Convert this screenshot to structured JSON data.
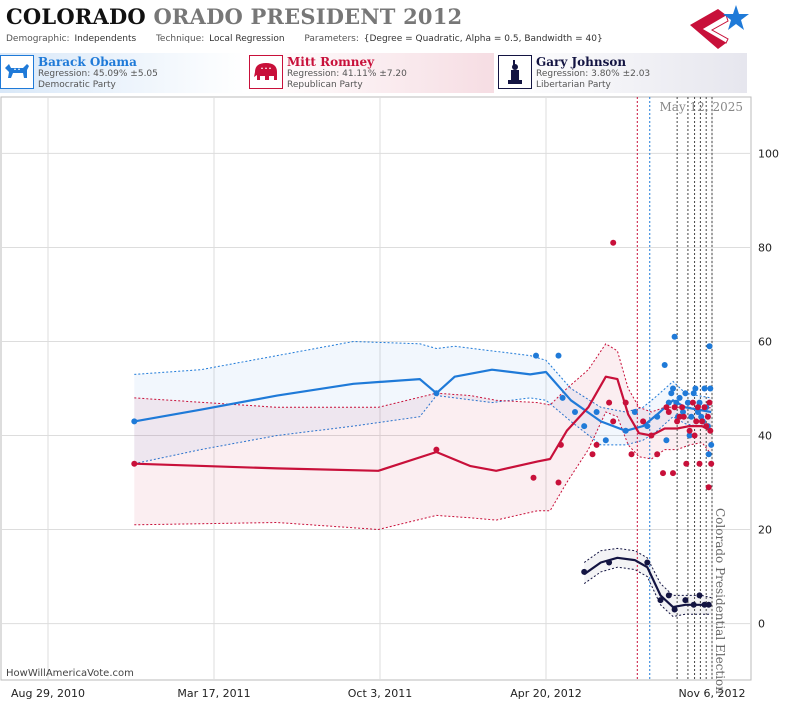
{
  "header": {
    "title_part1": "COLORADO",
    "title_part2": "ORADO PRESIDENT 2012",
    "demographic_label": "Demographic:",
    "demographic_value": "Independents",
    "technique_label": "Technique:",
    "technique_value": "Local Regression",
    "parameters_label": "Parameters:",
    "parameters_value": "{Degree = Quadratic, Alpha = 0.5, Bandwidth = 40}"
  },
  "candidates": [
    {
      "name": "Barack Obama",
      "regression": "Regression: 45.09% ±5.05",
      "party": "Democratic Party",
      "color": "#1f7ad8",
      "icon": "donkey-icon"
    },
    {
      "name": "Mitt Romney",
      "regression": "Regression: 41.11% ±7.20",
      "party": "Republican Party",
      "color": "#c8103a",
      "icon": "elephant-icon"
    },
    {
      "name": "Gary Johnson",
      "regression": "Regression: 3.80% ±2.03",
      "party": "Libertarian Party",
      "color": "#131442",
      "icon": "liberty-icon"
    }
  ],
  "source": "HowWillAmericaVote.com",
  "chart_data": {
    "type": "line",
    "date_label": "May 12, 2025",
    "event_label": "Colorado Presidential Election",
    "x_ticks": [
      "Aug 29, 2010",
      "Mar 17, 2011",
      "Oct 3, 2011",
      "Apr 20, 2012",
      "Nov 6, 2012"
    ],
    "y_ticks": [
      0,
      20,
      40,
      60,
      80,
      100
    ],
    "ylim": [
      -12,
      112
    ],
    "grid": true,
    "series": [
      {
        "name": "Barack Obama",
        "color": "#1f7ad8",
        "x_dates": [
          "2010-12-11",
          "2011-03-01",
          "2011-06-01",
          "2011-09-01",
          "2011-11-20",
          "2011-12-10",
          "2012-01-01",
          "2012-02-15",
          "2012-04-01",
          "2012-04-20",
          "2012-05-20",
          "2012-06-25",
          "2012-07-25",
          "2012-08-15",
          "2012-09-01",
          "2012-09-20",
          "2012-10-05",
          "2012-10-20",
          "2012-11-05"
        ],
        "y": [
          43,
          45.5,
          48.5,
          51,
          52,
          49,
          52.5,
          54,
          53,
          53.5,
          47.5,
          43,
          41,
          42,
          44.5,
          47.5,
          46,
          45.5,
          45
        ],
        "upper": [
          53,
          54,
          57,
          60,
          59.5,
          58.5,
          59,
          58,
          57,
          56,
          50,
          46,
          45,
          46,
          48.5,
          51.5,
          49,
          48.5,
          48
        ],
        "lower": [
          34,
          37,
          40,
          42,
          44,
          48.5,
          48,
          47,
          48,
          47.5,
          43,
          38,
          38,
          39,
          41,
          44,
          42.5,
          42,
          41.5
        ],
        "points": [
          [
            "2010-12-11",
            43
          ],
          [
            "2011-12-10",
            49
          ],
          [
            "2012-04-08",
            57
          ],
          [
            "2012-05-05",
            57
          ],
          [
            "2012-05-10",
            48
          ],
          [
            "2012-05-25",
            45
          ],
          [
            "2012-06-05",
            42
          ],
          [
            "2012-06-20",
            45
          ],
          [
            "2012-07-01",
            39
          ],
          [
            "2012-07-25",
            41
          ],
          [
            "2012-08-05",
            45
          ],
          [
            "2012-08-20",
            42
          ],
          [
            "2012-09-01",
            44
          ],
          [
            "2012-09-10",
            55
          ],
          [
            "2012-09-12",
            39
          ],
          [
            "2012-09-15",
            47
          ],
          [
            "2012-09-18",
            49
          ],
          [
            "2012-09-20",
            50
          ],
          [
            "2012-09-22",
            61
          ],
          [
            "2012-09-24",
            47
          ],
          [
            "2012-09-26",
            44
          ],
          [
            "2012-09-28",
            48
          ],
          [
            "2012-10-02",
            45
          ],
          [
            "2012-10-05",
            49
          ],
          [
            "2012-10-08",
            47
          ],
          [
            "2012-10-10",
            40
          ],
          [
            "2012-10-12",
            44
          ],
          [
            "2012-10-15",
            49
          ],
          [
            "2012-10-17",
            50
          ],
          [
            "2012-10-20",
            45
          ],
          [
            "2012-10-22",
            47
          ],
          [
            "2012-10-24",
            44
          ],
          [
            "2012-10-26",
            43
          ],
          [
            "2012-10-28",
            50
          ],
          [
            "2012-10-30",
            46
          ],
          [
            "2012-11-01",
            42
          ],
          [
            "2012-11-02",
            36
          ],
          [
            "2012-11-03",
            59
          ],
          [
            "2012-11-04",
            50
          ],
          [
            "2012-11-05",
            38
          ]
        ]
      },
      {
        "name": "Mitt Romney",
        "color": "#c8103a",
        "x_dates": [
          "2010-12-11",
          "2011-06-01",
          "2011-10-01",
          "2011-12-10",
          "2012-01-20",
          "2012-02-20",
          "2012-04-10",
          "2012-04-25",
          "2012-05-15",
          "2012-06-10",
          "2012-07-01",
          "2012-07-15",
          "2012-07-28",
          "2012-08-10",
          "2012-08-25",
          "2012-09-10",
          "2012-09-25",
          "2012-10-10",
          "2012-10-25",
          "2012-11-05"
        ],
        "y": [
          34,
          33,
          32.5,
          36.5,
          33.5,
          32.5,
          34.5,
          35,
          41,
          46,
          52.5,
          52,
          44.5,
          40.5,
          40,
          41.5,
          41.5,
          42,
          42,
          41
        ],
        "upper": [
          48,
          46,
          46,
          49,
          48.5,
          47.5,
          47,
          46.5,
          50,
          54,
          59.5,
          58,
          50,
          46,
          45,
          46,
          46,
          46,
          45.5,
          46
        ],
        "lower": [
          21,
          21.5,
          20,
          23,
          22.5,
          22,
          24,
          24,
          30,
          37,
          45,
          44,
          38,
          35.5,
          35,
          37,
          37,
          38,
          38.5,
          36
        ],
        "points": [
          [
            "2010-12-11",
            34
          ],
          [
            "2011-12-10",
            37
          ],
          [
            "2012-04-05",
            31
          ],
          [
            "2012-05-05",
            30
          ],
          [
            "2012-05-08",
            38
          ],
          [
            "2012-06-15",
            36
          ],
          [
            "2012-06-20",
            38
          ],
          [
            "2012-07-05",
            47
          ],
          [
            "2012-07-10",
            43
          ],
          [
            "2012-07-10",
            81
          ],
          [
            "2012-07-25",
            47
          ],
          [
            "2012-08-01",
            36
          ],
          [
            "2012-08-15",
            43
          ],
          [
            "2012-08-25",
            40
          ],
          [
            "2012-09-01",
            36
          ],
          [
            "2012-09-08",
            32
          ],
          [
            "2012-09-12",
            46
          ],
          [
            "2012-09-15",
            45
          ],
          [
            "2012-09-20",
            32
          ],
          [
            "2012-09-22",
            46
          ],
          [
            "2012-09-25",
            43
          ],
          [
            "2012-09-28",
            44
          ],
          [
            "2012-10-01",
            46
          ],
          [
            "2012-10-03",
            44
          ],
          [
            "2012-10-06",
            34
          ],
          [
            "2012-10-10",
            41
          ],
          [
            "2012-10-14",
            47
          ],
          [
            "2012-10-16",
            40
          ],
          [
            "2012-10-18",
            43
          ],
          [
            "2012-10-20",
            46
          ],
          [
            "2012-10-22",
            34
          ],
          [
            "2012-10-25",
            43
          ],
          [
            "2012-10-28",
            46
          ],
          [
            "2012-10-30",
            42
          ],
          [
            "2012-11-01",
            44
          ],
          [
            "2012-11-02",
            29
          ],
          [
            "2012-11-03",
            47
          ],
          [
            "2012-11-04",
            41
          ],
          [
            "2012-11-05",
            34
          ]
        ]
      },
      {
        "name": "Gary Johnson",
        "color": "#131442",
        "x_dates": [
          "2012-06-05",
          "2012-06-25",
          "2012-07-15",
          "2012-08-05",
          "2012-08-20",
          "2012-09-05",
          "2012-09-20",
          "2012-10-05",
          "2012-10-25",
          "2012-11-05"
        ],
        "y": [
          10.5,
          13,
          14,
          13.5,
          12,
          6,
          3.5,
          4,
          4,
          4
        ],
        "upper": [
          13,
          15.5,
          16,
          15.5,
          14,
          8.5,
          6,
          6,
          6,
          5.5
        ],
        "lower": [
          8.5,
          11,
          12,
          11.5,
          10,
          4,
          1.5,
          2,
          2,
          2
        ],
        "points": [
          [
            "2012-06-05",
            11
          ],
          [
            "2012-07-05",
            13
          ],
          [
            "2012-08-20",
            13
          ],
          [
            "2012-09-05",
            5
          ],
          [
            "2012-09-15",
            6
          ],
          [
            "2012-09-22",
            3
          ],
          [
            "2012-10-05",
            5
          ],
          [
            "2012-10-15",
            4
          ],
          [
            "2012-10-22",
            6
          ],
          [
            "2012-10-28",
            4
          ],
          [
            "2012-11-02",
            4
          ]
        ]
      }
    ],
    "event_lines": [
      "2012-08-08",
      "2012-08-23",
      "2012-09-25",
      "2012-10-08",
      "2012-10-16",
      "2012-10-23",
      "2012-10-30",
      "2012-11-06"
    ]
  }
}
